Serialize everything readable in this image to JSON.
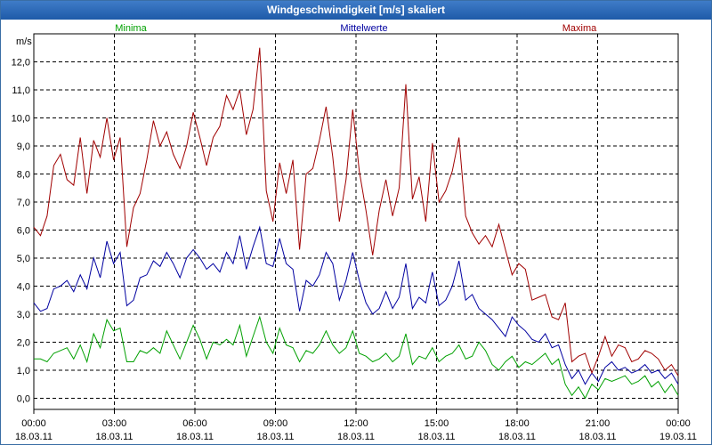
{
  "window": {
    "title": "Windgeschwindigkeit [m/s] skaliert"
  },
  "chart_data": {
    "type": "line",
    "title": "Windgeschwindigkeit [m/s] skaliert",
    "ylabel": "m/s",
    "ylim": [
      -0.4,
      13.0
    ],
    "yticks": [
      "0,0",
      "1,0",
      "2,0",
      "3,0",
      "4,0",
      "5,0",
      "6,0",
      "7,0",
      "8,0",
      "9,0",
      "10,0",
      "11,0",
      "12,0"
    ],
    "xticks": [
      {
        "time": "00:00",
        "date": "18.03.11"
      },
      {
        "time": "03:00",
        "date": "18.03.11"
      },
      {
        "time": "06:00",
        "date": "18.03.11"
      },
      {
        "time": "09:00",
        "date": "18.03.11"
      },
      {
        "time": "12:00",
        "date": "18.03.11"
      },
      {
        "time": "15:00",
        "date": "18.03.11"
      },
      {
        "time": "18:00",
        "date": "18.03.11"
      },
      {
        "time": "21:00",
        "date": "18.03.11"
      },
      {
        "time": "00:00",
        "date": "19.03.11"
      }
    ],
    "grid": true,
    "series": [
      {
        "name": "Minima",
        "color": "#00a000",
        "legend_position": "top-left",
        "values": [
          1.4,
          1.4,
          1.3,
          1.6,
          1.7,
          1.8,
          1.4,
          1.9,
          1.3,
          2.3,
          1.8,
          2.8,
          2.4,
          2.5,
          1.3,
          1.3,
          1.7,
          1.6,
          1.8,
          1.6,
          2.4,
          1.9,
          1.4,
          2.0,
          2.6,
          2.1,
          1.4,
          2.0,
          1.9,
          2.1,
          1.9,
          2.6,
          1.5,
          2.2,
          2.9,
          2.0,
          1.6,
          2.5,
          1.9,
          1.8,
          1.3,
          1.7,
          1.6,
          1.9,
          2.4,
          1.9,
          1.6,
          1.8,
          2.4,
          1.6,
          1.5,
          1.3,
          1.4,
          1.6,
          1.3,
          1.5,
          2.3,
          1.2,
          1.5,
          1.4,
          1.8,
          1.3,
          1.5,
          1.6,
          1.9,
          1.4,
          1.5,
          2.0,
          1.7,
          1.2,
          1.0,
          1.3,
          1.5,
          1.1,
          1.3,
          1.2,
          1.4,
          1.6,
          1.2,
          1.4,
          0.5,
          0.1,
          0.4,
          0.0,
          0.5,
          0.3,
          0.7,
          0.6,
          0.7,
          0.8,
          0.5,
          0.6,
          0.8,
          0.4,
          0.6,
          0.2,
          0.5,
          0.1
        ]
      },
      {
        "name": "Mittelwerte",
        "color": "#0000a0",
        "legend_position": "top-center",
        "values": [
          3.4,
          3.1,
          3.2,
          3.9,
          4.0,
          4.2,
          3.8,
          4.4,
          3.9,
          5.0,
          4.3,
          5.6,
          4.8,
          5.2,
          3.3,
          3.5,
          4.3,
          4.4,
          4.9,
          4.7,
          5.2,
          4.8,
          4.3,
          5.0,
          5.3,
          5.0,
          4.6,
          4.8,
          4.5,
          5.2,
          4.8,
          5.8,
          4.6,
          5.4,
          6.1,
          4.8,
          4.7,
          5.7,
          4.8,
          4.6,
          3.1,
          4.2,
          4.0,
          4.4,
          5.2,
          4.8,
          3.5,
          4.2,
          5.2,
          4.2,
          3.4,
          3.0,
          3.2,
          3.8,
          3.2,
          3.6,
          4.8,
          3.2,
          3.6,
          3.4,
          4.5,
          3.3,
          3.5,
          4.0,
          4.9,
          3.5,
          3.7,
          3.2,
          3.0,
          2.8,
          2.5,
          2.2,
          2.9,
          2.6,
          2.4,
          2.1,
          2.0,
          2.3,
          1.8,
          1.9,
          1.2,
          0.7,
          1.0,
          0.5,
          0.9,
          0.6,
          1.1,
          1.3,
          1.0,
          1.1,
          0.9,
          1.0,
          1.2,
          0.9,
          1.0,
          0.7,
          0.9,
          0.5
        ]
      },
      {
        "name": "Maxima",
        "color": "#a00000",
        "legend_position": "top-right",
        "values": [
          6.1,
          5.8,
          6.5,
          8.3,
          8.7,
          7.8,
          7.6,
          9.3,
          7.3,
          9.2,
          8.6,
          10.0,
          8.5,
          9.3,
          5.4,
          6.8,
          7.3,
          8.5,
          9.9,
          9.0,
          9.5,
          8.7,
          8.2,
          9.0,
          10.2,
          9.3,
          8.3,
          9.3,
          9.7,
          10.8,
          10.3,
          11.0,
          9.4,
          10.3,
          12.5,
          7.4,
          6.3,
          8.4,
          7.3,
          8.5,
          5.3,
          8.0,
          8.2,
          9.2,
          10.4,
          8.6,
          6.3,
          7.8,
          10.3,
          8.1,
          6.7,
          5.1,
          6.7,
          7.8,
          6.5,
          7.5,
          11.2,
          7.1,
          7.9,
          6.3,
          9.1,
          7.0,
          7.4,
          8.1,
          9.3,
          6.5,
          5.9,
          5.5,
          5.8,
          5.4,
          6.2,
          5.3,
          4.4,
          4.8,
          4.6,
          3.5,
          3.6,
          3.7,
          2.9,
          2.8,
          3.4,
          1.3,
          1.5,
          1.6,
          0.9,
          1.5,
          2.2,
          1.5,
          1.9,
          1.8,
          1.3,
          1.4,
          1.7,
          1.6,
          1.4,
          1.0,
          1.2,
          0.8
        ]
      }
    ]
  }
}
